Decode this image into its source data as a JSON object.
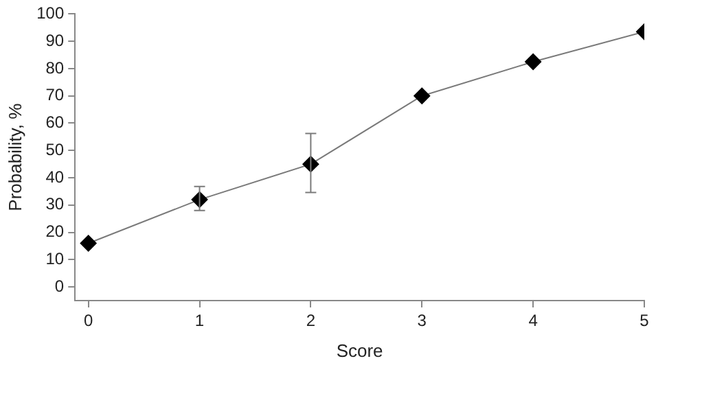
{
  "chart_data": {
    "type": "line",
    "xlabel": "Score",
    "ylabel": "Probability, %",
    "x": [
      0,
      1,
      2,
      3,
      4,
      5
    ],
    "series": [
      {
        "color": "#000000",
        "values": [
          16,
          32,
          45,
          70,
          82.5,
          93.5
        ],
        "errors": [
          null,
          [
            28,
            36.8
          ],
          [
            34.6,
            56.2
          ],
          null,
          null,
          null
        ]
      }
    ],
    "xlim": [
      -0.12,
      5
    ],
    "xticks": [
      0,
      1,
      2,
      3,
      4,
      5
    ],
    "ylim": [
      -5,
      100
    ],
    "yticks": [
      0,
      10,
      20,
      30,
      40,
      50,
      60,
      70,
      80,
      90,
      100
    ],
    "grid": false,
    "legend": false,
    "marker": "diamond",
    "line_style": "solid"
  }
}
